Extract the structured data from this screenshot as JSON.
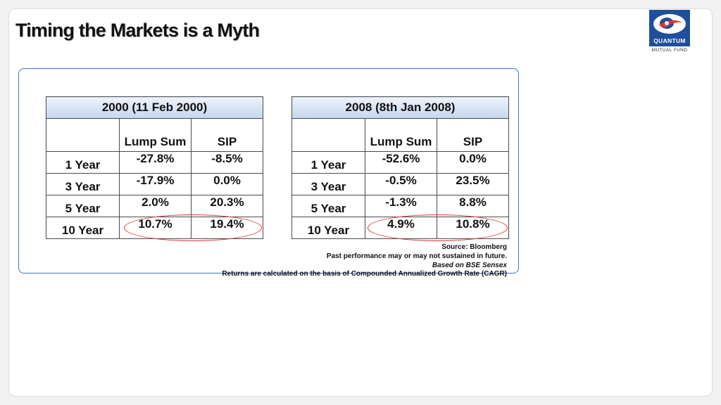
{
  "title": "Timing the Markets is a Myth",
  "logo": {
    "word": "QUANTUM",
    "sub": "MUTUAL FUND",
    "icon": "quantum-logo-icon",
    "colors": {
      "brand": "#1f4e9c",
      "accent": "#e03030"
    }
  },
  "tables": [
    {
      "header": "2000 (11 Feb 2000)",
      "col1": "Lump Sum",
      "col2": "SIP",
      "rows": [
        {
          "label": "1 Year",
          "lump": "-27.8%",
          "sip": "-8.5%"
        },
        {
          "label": "3 Year",
          "lump": "-17.9%",
          "sip": "0.0%"
        },
        {
          "label": "5 Year",
          "lump": "2.0%",
          "sip": "20.3%"
        },
        {
          "label": "10 Year",
          "lump": "10.7%",
          "sip": "19.4%"
        }
      ]
    },
    {
      "header": "2008 (8th Jan 2008)",
      "col1": "Lump Sum",
      "col2": "SIP",
      "rows": [
        {
          "label": "1 Year",
          "lump": "-52.6%",
          "sip": "0.0%"
        },
        {
          "label": "3 Year",
          "lump": "-0.5%",
          "sip": "23.5%"
        },
        {
          "label": "5 Year",
          "lump": "-1.3%",
          "sip": "8.8%"
        },
        {
          "label": "10 Year",
          "lump": "4.9%",
          "sip": "10.8%"
        }
      ]
    }
  ],
  "notes": {
    "source": "Source: Bloomberg",
    "disclaimer": "Past performance may or may not sustained in future.",
    "basis": "Based on BSE Sensex",
    "cagr": "Returns are calculated on the basis of Compounded Annualized Growth Rate (CAGR)"
  }
}
